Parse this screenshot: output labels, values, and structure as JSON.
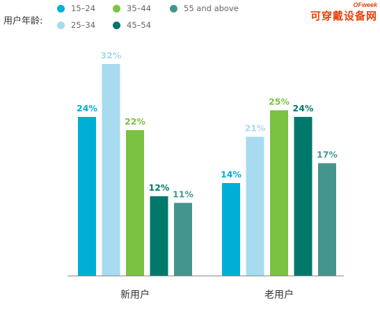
{
  "watermark": {
    "brand": "OFweek",
    "name": "可穿戴设备网"
  },
  "legend": {
    "title": "用户年龄:",
    "items": [
      {
        "label": "15–24",
        "color": "#00aed6"
      },
      {
        "label": "25–34",
        "color": "#a8daf0"
      },
      {
        "label": "35–44",
        "color": "#7bc142"
      },
      {
        "label": "45–54",
        "color": "#00796b"
      },
      {
        "label": "55 and above",
        "color": "#45958f"
      }
    ]
  },
  "chart_data": {
    "type": "bar",
    "categories": [
      "新用户",
      "老用户"
    ],
    "series": [
      {
        "name": "15–24",
        "values": [
          24,
          14
        ],
        "color": "#00aed6",
        "label_color": "#00aed6",
        "value_labels": [
          "24%",
          "14%"
        ]
      },
      {
        "name": "25–34",
        "values": [
          32,
          21
        ],
        "color": "#a8daf0",
        "label_color": "#a8daf0",
        "value_labels": [
          "32%",
          "21%"
        ]
      },
      {
        "name": "35–44",
        "values": [
          22,
          25
        ],
        "color": "#7bc142",
        "label_color": "#7bc142",
        "value_labels": [
          "22%",
          "25%"
        ]
      },
      {
        "name": "45–54",
        "values": [
          12,
          24
        ],
        "color": "#00796b",
        "label_color": "#00796b",
        "value_labels": [
          "12%",
          "24%"
        ]
      },
      {
        "name": "55 and above",
        "values": [
          11,
          17
        ],
        "color": "#45958f",
        "label_color": "#45958f",
        "value_labels": [
          "11%",
          "17%"
        ]
      }
    ],
    "ylim": [
      0,
      32
    ],
    "grid": false,
    "legend_position": "top-left"
  }
}
